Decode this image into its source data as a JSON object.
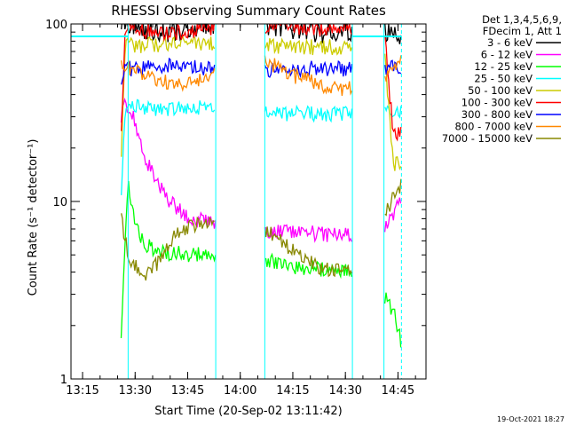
{
  "chart_data": {
    "type": "line",
    "title": "RHESSI Observing Summary Count Rates",
    "xlabel": "Start Time (20-Sep-02 13:11:42)",
    "ylabel": "Count Rate (s⁻¹ detector⁻¹)",
    "yscale": "log",
    "ylim": [
      1,
      100
    ],
    "xlim": [
      "13:11:42",
      "14:53:00"
    ],
    "x_ticks": [
      "13:15",
      "13:30",
      "13:45",
      "14:00",
      "14:15",
      "14:30",
      "14:45"
    ],
    "y_ticks": [
      "1",
      "10",
      "100"
    ],
    "grid": false,
    "legend_position": "top-right",
    "legend_header": [
      "Det 1,3,4,5,6,9,",
      "FDecim 1, Att 1"
    ],
    "timestamp": "19-Oct-2021 18:27",
    "x_unit": "minutes since 13:11:42",
    "data_gaps": [
      [
        0,
        14.3
      ],
      [
        41.3,
        55.3
      ],
      [
        80.3,
        89.3
      ]
    ],
    "attenuator_markers": [
      16.3,
      41.3,
      55.3,
      80.3,
      89.3,
      94.3
    ],
    "series": [
      {
        "name": "3 - 6 keV",
        "color": "#000000",
        "x": [
          0,
          14.3,
          15.5,
          18,
          22,
          26,
          30,
          34,
          38,
          41.3,
          55.3,
          58,
          62,
          66,
          70,
          80.3,
          89.3,
          94.3
        ],
        "y": [
          80,
          95,
          100,
          98,
          92,
          90,
          91,
          95,
          99,
          100,
          100,
          97,
          93,
          90,
          88,
          92,
          88,
          88
        ]
      },
      {
        "name": "6 - 12 keV",
        "color": "#ff00ff",
        "x": [
          14.3,
          15.5,
          17,
          18,
          19,
          20,
          22,
          24,
          26,
          28,
          30,
          32,
          34,
          36,
          38,
          41.3,
          55.3,
          58,
          62,
          66,
          70,
          74,
          78,
          80.3,
          89.3,
          92,
          94.3
        ],
        "y": [
          30,
          36,
          33,
          29,
          25,
          21,
          16,
          13.5,
          11.5,
          10.2,
          9.2,
          8.6,
          8.1,
          7.9,
          7.8,
          7.6,
          6.9,
          6.8,
          6.7,
          6.6,
          6.6,
          6.5,
          6.5,
          6.5,
          6.8,
          8.5,
          11
        ]
      },
      {
        "name": "12 - 25 keV",
        "color": "#00ff00",
        "x": [
          14.3,
          16.3,
          17,
          18,
          20,
          22,
          24,
          26,
          28,
          30,
          34,
          38,
          41.3,
          55.3,
          58,
          62,
          66,
          70,
          74,
          78,
          80.3,
          89.3,
          92,
          94.3
        ],
        "y": [
          1.8,
          13,
          10,
          8,
          6.3,
          5.6,
          5.3,
          5.2,
          5.1,
          5.1,
          5.0,
          5.0,
          5.0,
          4.8,
          4.5,
          4.3,
          4.2,
          4.2,
          4.1,
          4.1,
          4.1,
          3.0,
          2.4,
          1.6
        ]
      },
      {
        "name": "25 - 50 keV",
        "color": "#00ffff",
        "x": [
          0,
          4,
          8,
          12,
          14.3,
          15.5,
          18,
          22,
          26,
          30,
          34,
          38,
          41.3,
          55.3,
          58,
          62,
          66,
          70,
          74,
          78,
          80.3,
          89.3,
          92,
          94.3
        ],
        "y": [
          8.6,
          8.9,
          9.1,
          9.5,
          9.8,
          36,
          34,
          33,
          33,
          33.5,
          34,
          34,
          34,
          33,
          32,
          31,
          31,
          31,
          31,
          31.5,
          32,
          32,
          32,
          33
        ]
      },
      {
        "name": "50 - 100 keV",
        "color": "#cccc00",
        "x": [
          0,
          4,
          8,
          12,
          14.3,
          15.5,
          18,
          22,
          26,
          30,
          34,
          38,
          41.3,
          55.3,
          58,
          62,
          66,
          70,
          74,
          78,
          80.3,
          89.3,
          92,
          94.3
        ],
        "y": [
          17,
          17.5,
          18,
          18.5,
          18,
          78,
          76,
          76,
          77,
          78,
          78,
          78,
          78,
          77,
          75,
          74,
          74,
          74,
          74,
          75,
          76,
          77,
          16,
          17
        ]
      },
      {
        "name": "100 - 300 keV",
        "color": "#ff0000",
        "x": [
          0,
          4,
          8,
          12,
          14.3,
          15.5,
          18,
          22,
          26,
          30,
          34,
          38,
          41.3,
          55.3,
          58,
          62,
          66,
          70,
          74,
          78,
          80.3,
          89.3,
          92,
          94.3
        ],
        "y": [
          26,
          26,
          25,
          24,
          23,
          96,
          93,
          91,
          90,
          90,
          91,
          93,
          95,
          98,
          97,
          96,
          95,
          94,
          94,
          95,
          96,
          97,
          23,
          26
        ]
      },
      {
        "name": "300 - 800 keV",
        "color": "#0000ff",
        "x": [
          0,
          4,
          8,
          12,
          14.3,
          15.5,
          18,
          22,
          26,
          30,
          34,
          38,
          41.3,
          55.3,
          58,
          62,
          66,
          70,
          74,
          78,
          80.3,
          89.3,
          92,
          94.3
        ],
        "y": [
          52,
          53,
          53,
          52,
          50,
          55,
          56,
          57,
          58,
          58,
          57,
          56,
          55,
          54,
          55,
          56,
          56,
          56,
          56,
          56,
          57,
          57,
          58,
          58
        ]
      },
      {
        "name": "800 - 7000 keV",
        "color": "#ff8800",
        "x": [
          0,
          4,
          8,
          12,
          14.3,
          15.5,
          18,
          22,
          26,
          30,
          34,
          38,
          41.3,
          44,
          48,
          52,
          55.3,
          58,
          62,
          66,
          70,
          74,
          78,
          82,
          86,
          89.3,
          92,
          94.3
        ],
        "y": [
          72,
          69,
          67,
          65,
          63,
          58,
          54,
          50,
          47,
          46,
          47,
          50,
          55,
          60,
          63,
          64,
          63,
          58,
          53,
          49,
          46,
          44,
          43,
          43,
          45,
          49,
          57,
          68
        ]
      },
      {
        "name": "7000 - 15000 keV",
        "color": "#888800",
        "x": [
          0,
          4,
          8,
          12,
          14.3,
          15.5,
          17,
          18,
          20,
          22,
          24,
          26,
          28,
          30,
          34,
          38,
          41.3,
          44,
          48,
          52,
          55.3,
          58,
          62,
          66,
          70,
          74,
          78,
          80.3,
          82,
          86,
          89.3,
          92,
          94.3
        ],
        "y": [
          11.5,
          10.5,
          9.8,
          8.8,
          8.0,
          6.0,
          4.6,
          4.3,
          4.0,
          3.9,
          4.3,
          5.0,
          5.8,
          6.4,
          7.2,
          7.6,
          7.8,
          7.9,
          7.8,
          7.4,
          7.0,
          6.4,
          5.6,
          4.8,
          4.3,
          4.1,
          4.2,
          4.3,
          4.6,
          6.0,
          8.2,
          10.5,
          12.5
        ]
      }
    ]
  }
}
